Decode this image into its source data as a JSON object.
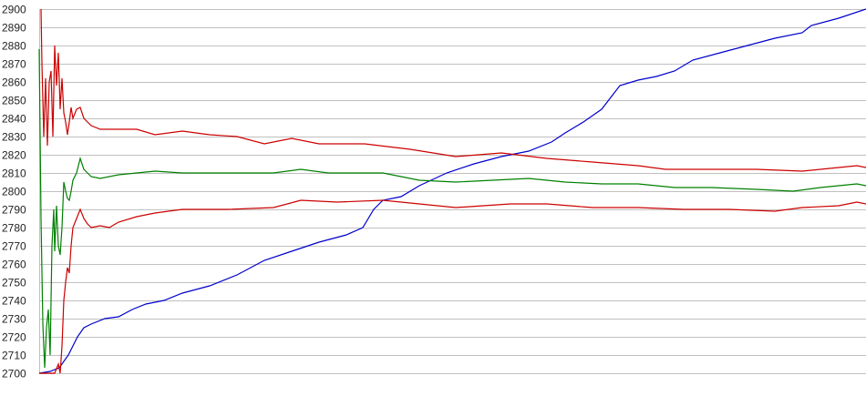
{
  "chart_data": {
    "type": "line",
    "title": "",
    "xlabel": "",
    "ylabel": "",
    "ylim": [
      2700,
      2900
    ],
    "xlim": [
      0,
      907
    ],
    "grid": true,
    "yticks": [
      2700,
      2710,
      2720,
      2730,
      2740,
      2750,
      2760,
      2770,
      2780,
      2790,
      2800,
      2810,
      2820,
      2830,
      2840,
      2850,
      2860,
      2870,
      2880,
      2890,
      2900
    ],
    "series": [
      {
        "name": "blue",
        "color": "#0000cc",
        "x": [
          0,
          12,
          22,
          32,
          42,
          49,
          57,
          72,
          87,
          102,
          117,
          137,
          157,
          187,
          217,
          247,
          277,
          307,
          337,
          355,
          367,
          377,
          397,
          417,
          447,
          477,
          507,
          537,
          562,
          577,
          597,
          617,
          637,
          657,
          677,
          697,
          717,
          747,
          777,
          807,
          837,
          847,
          877,
          907
        ],
        "y": [
          2700,
          2701,
          2703,
          2710,
          2720,
          2725,
          2727,
          2730,
          2731,
          2735,
          2738,
          2740,
          2744,
          2748,
          2754,
          2762,
          2767,
          2772,
          2776,
          2780,
          2790,
          2795,
          2797,
          2803,
          2810,
          2815,
          2819,
          2822,
          2827,
          2832,
          2838,
          2845,
          2858,
          2861,
          2863,
          2866,
          2872,
          2876,
          2880,
          2884,
          2887,
          2891,
          2895,
          2900
        ]
      },
      {
        "name": "red-upper",
        "color": "#cc0000",
        "x": [
          2,
          3,
          5,
          7,
          9,
          11,
          13,
          15,
          17,
          19,
          21,
          23,
          25,
          27,
          29,
          31,
          33,
          35,
          37,
          41,
          45,
          49,
          53,
          57,
          67,
          87,
          107,
          127,
          157,
          187,
          217,
          247,
          277,
          307,
          357,
          407,
          457,
          507,
          557,
          607,
          657,
          687,
          737,
          787,
          837,
          877,
          897,
          907
        ],
        "y": [
          2900,
          2870,
          2830,
          2862,
          2825,
          2860,
          2866,
          2830,
          2880,
          2858,
          2876,
          2845,
          2862,
          2843,
          2838,
          2831,
          2838,
          2846,
          2840,
          2845,
          2846,
          2840,
          2838,
          2836,
          2834,
          2834,
          2834,
          2831,
          2833,
          2831,
          2830,
          2826,
          2829,
          2826,
          2826,
          2823,
          2819,
          2821,
          2818,
          2816,
          2814,
          2812,
          2812,
          2812,
          2811,
          2813,
          2814,
          2813
        ]
      },
      {
        "name": "green",
        "color": "#008000",
        "x": [
          0,
          2,
          4,
          6,
          8,
          10,
          12,
          14,
          16,
          17,
          19,
          21,
          23,
          25,
          27,
          29,
          31,
          33,
          35,
          37,
          41,
          45,
          49,
          53,
          57,
          67,
          87,
          107,
          127,
          157,
          207,
          257,
          287,
          317,
          377,
          417,
          457,
          497,
          537,
          577,
          617,
          657,
          697,
          737,
          787,
          827,
          857,
          897,
          907
        ],
        "y": [
          2878,
          2785,
          2727,
          2703,
          2725,
          2735,
          2710,
          2770,
          2790,
          2767,
          2792,
          2770,
          2765,
          2780,
          2805,
          2800,
          2796,
          2795,
          2800,
          2806,
          2810,
          2818,
          2812,
          2810,
          2808,
          2807,
          2809,
          2810,
          2811,
          2810,
          2810,
          2810,
          2812,
          2810,
          2810,
          2806,
          2805,
          2806,
          2807,
          2805,
          2804,
          2804,
          2802,
          2802,
          2801,
          2800,
          2802,
          2804,
          2803
        ]
      },
      {
        "name": "red-lower",
        "color": "#cc0000",
        "x": [
          0,
          17,
          21,
          23,
          25,
          27,
          29,
          31,
          33,
          35,
          37,
          41,
          45,
          49,
          53,
          57,
          67,
          77,
          87,
          107,
          127,
          157,
          207,
          257,
          287,
          327,
          377,
          417,
          457,
          517,
          557,
          607,
          657,
          707,
          757,
          807,
          837,
          877,
          897,
          907
        ],
        "y": [
          2700,
          2700,
          2705,
          2700,
          2715,
          2740,
          2750,
          2758,
          2755,
          2770,
          2780,
          2785,
          2790,
          2785,
          2782,
          2780,
          2781,
          2780,
          2783,
          2786,
          2788,
          2790,
          2790,
          2791,
          2795,
          2794,
          2795,
          2793,
          2791,
          2793,
          2793,
          2791,
          2791,
          2790,
          2790,
          2789,
          2791,
          2792,
          2794,
          2793
        ]
      }
    ]
  }
}
